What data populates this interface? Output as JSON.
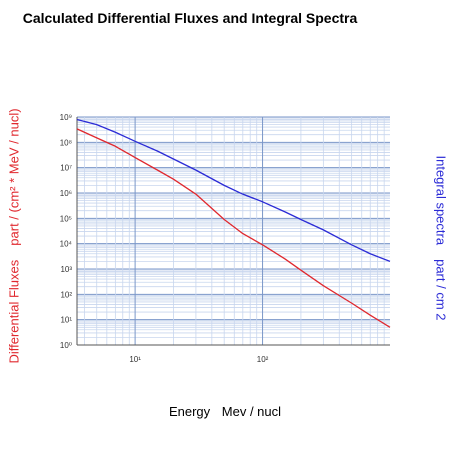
{
  "chart_data": {
    "type": "line",
    "title": "Calculated Differential Fluxes and Integral Spectra",
    "xlabel": {
      "name": "Energy",
      "unit": "Mev / nucl"
    },
    "ylabel_left": {
      "name": "Differential Fluxes",
      "unit": "part / (cm² * MeV / nucl)"
    },
    "ylabel_right": {
      "name": "Integral spectra",
      "unit": "part / cm 2"
    },
    "x_scale": "log",
    "y_scale": "log",
    "xlim": [
      3.5,
      1000
    ],
    "ylim": [
      1,
      1000000000
    ],
    "grid": true,
    "x_ticks": [
      {
        "value": 10,
        "label": "10¹"
      },
      {
        "value": 100,
        "label": "10²"
      }
    ],
    "y_ticks": [
      {
        "value": 1,
        "label": "10⁰"
      },
      {
        "value": 10,
        "label": "10¹"
      },
      {
        "value": 100,
        "label": "10²"
      },
      {
        "value": 1000,
        "label": "10³"
      },
      {
        "value": 10000,
        "label": "10⁴"
      },
      {
        "value": 100000,
        "label": "10⁵"
      },
      {
        "value": 1000000,
        "label": "10⁶"
      },
      {
        "value": 10000000,
        "label": "10⁷"
      },
      {
        "value": 100000000,
        "label": "10⁸"
      },
      {
        "value": 1000000000,
        "label": "10⁹"
      }
    ],
    "series": [
      {
        "color": "#e0282e",
        "x": [
          3.5,
          5,
          7,
          10,
          15,
          20,
          30,
          50,
          70,
          100,
          150,
          200,
          300,
          500,
          700,
          1000
        ],
        "y": [
          340000000,
          150000000,
          70000000,
          25000000,
          8000000,
          3500000,
          900000,
          90000,
          25000,
          9000,
          2500,
          900,
          220,
          45,
          15,
          5
        ]
      },
      {
        "color": "#2b2bd6",
        "x": [
          3.5,
          5,
          7,
          10,
          15,
          20,
          30,
          50,
          70,
          100,
          150,
          200,
          300,
          500,
          700,
          1000
        ],
        "y": [
          800000000,
          500000000,
          250000000,
          110000000,
          45000000,
          22000000,
          8000000,
          2000000,
          900000,
          450000,
          180000,
          90000,
          35000,
          9000,
          4000,
          2000
        ]
      }
    ],
    "colors": {
      "grid_major": "#7a96c8",
      "grid_minor": "#c8d6ee",
      "axis": "#555555"
    }
  }
}
